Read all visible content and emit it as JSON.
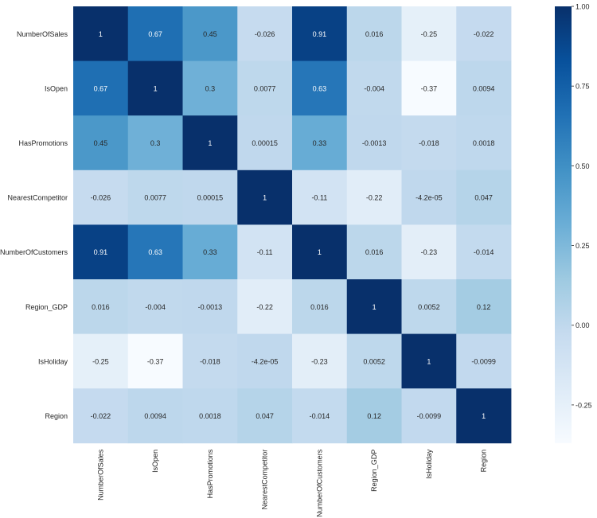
{
  "chart_data": {
    "type": "heatmap",
    "title": "",
    "xlabel": "",
    "ylabel": "",
    "rows": [
      "NumberOfSales",
      "IsOpen",
      "HasPromotions",
      "NearestCompetitor",
      "NumberOfCustomers",
      "Region_GDP",
      "IsHoliday",
      "Region"
    ],
    "columns": [
      "NumberOfSales",
      "IsOpen",
      "HasPromotions",
      "NearestCompetitor",
      "NumberOfCustomers",
      "Region_GDP",
      "IsHoliday",
      "Region"
    ],
    "values": [
      [
        1,
        0.67,
        0.45,
        -0.026,
        0.91,
        0.016,
        -0.25,
        -0.022
      ],
      [
        0.67,
        1,
        0.3,
        0.0077,
        0.63,
        -0.004,
        -0.37,
        0.0094
      ],
      [
        0.45,
        0.3,
        1,
        0.00015,
        0.33,
        -0.0013,
        -0.018,
        0.0018
      ],
      [
        -0.026,
        0.0077,
        0.00015,
        1,
        -0.11,
        -0.22,
        -4.2e-05,
        0.047
      ],
      [
        0.91,
        0.63,
        0.33,
        -0.11,
        1,
        0.016,
        -0.23,
        -0.014
      ],
      [
        0.016,
        -0.004,
        -0.0013,
        -0.22,
        0.016,
        1,
        0.0052,
        0.12
      ],
      [
        -0.25,
        -0.37,
        -0.018,
        -4.2e-05,
        -0.23,
        0.0052,
        1,
        -0.0099
      ],
      [
        -0.022,
        0.0094,
        0.0018,
        0.047,
        -0.014,
        0.12,
        -0.0099,
        1
      ]
    ],
    "labels": [
      [
        "1",
        "0.67",
        "0.45",
        "-0.026",
        "0.91",
        "0.016",
        "-0.25",
        "-0.022"
      ],
      [
        "0.67",
        "1",
        "0.3",
        "0.0077",
        "0.63",
        "-0.004",
        "-0.37",
        "0.0094"
      ],
      [
        "0.45",
        "0.3",
        "1",
        "0.00015",
        "0.33",
        "-0.0013",
        "-0.018",
        "0.0018"
      ],
      [
        "-0.026",
        "0.0077",
        "0.00015",
        "1",
        "-0.11",
        "-0.22",
        "-4.2e-05",
        "0.047"
      ],
      [
        "0.91",
        "0.63",
        "0.33",
        "-0.11",
        "1",
        "0.016",
        "-0.23",
        "-0.014"
      ],
      [
        "0.016",
        "-0.004",
        "-0.0013",
        "-0.22",
        "0.016",
        "1",
        "0.0052",
        "0.12"
      ],
      [
        "-0.25",
        "-0.37",
        "-0.018",
        "-4.2e-05",
        "-0.23",
        "0.0052",
        "1",
        "-0.0099"
      ],
      [
        "-0.022",
        "0.0094",
        "0.0018",
        "0.047",
        "-0.014",
        "0.12",
        "-0.0099",
        "1"
      ]
    ],
    "color_scale": {
      "name": "Blues",
      "vmin": -0.37,
      "vmax": 1,
      "ticks": [
        1.0,
        0.75,
        0.5,
        0.25,
        0.0,
        -0.25
      ],
      "tick_labels": [
        "1.00",
        "0.75",
        "0.50",
        "0.25",
        "0.00",
        "-0.25"
      ],
      "stops": [
        "#f7fbff",
        "#deebf7",
        "#c6dbef",
        "#9ecae1",
        "#6baed6",
        "#4292c6",
        "#2171b5",
        "#08519c",
        "#08306b"
      ]
    },
    "text_colors": {
      "light": "#ffffff",
      "dark": "#262626"
    }
  }
}
